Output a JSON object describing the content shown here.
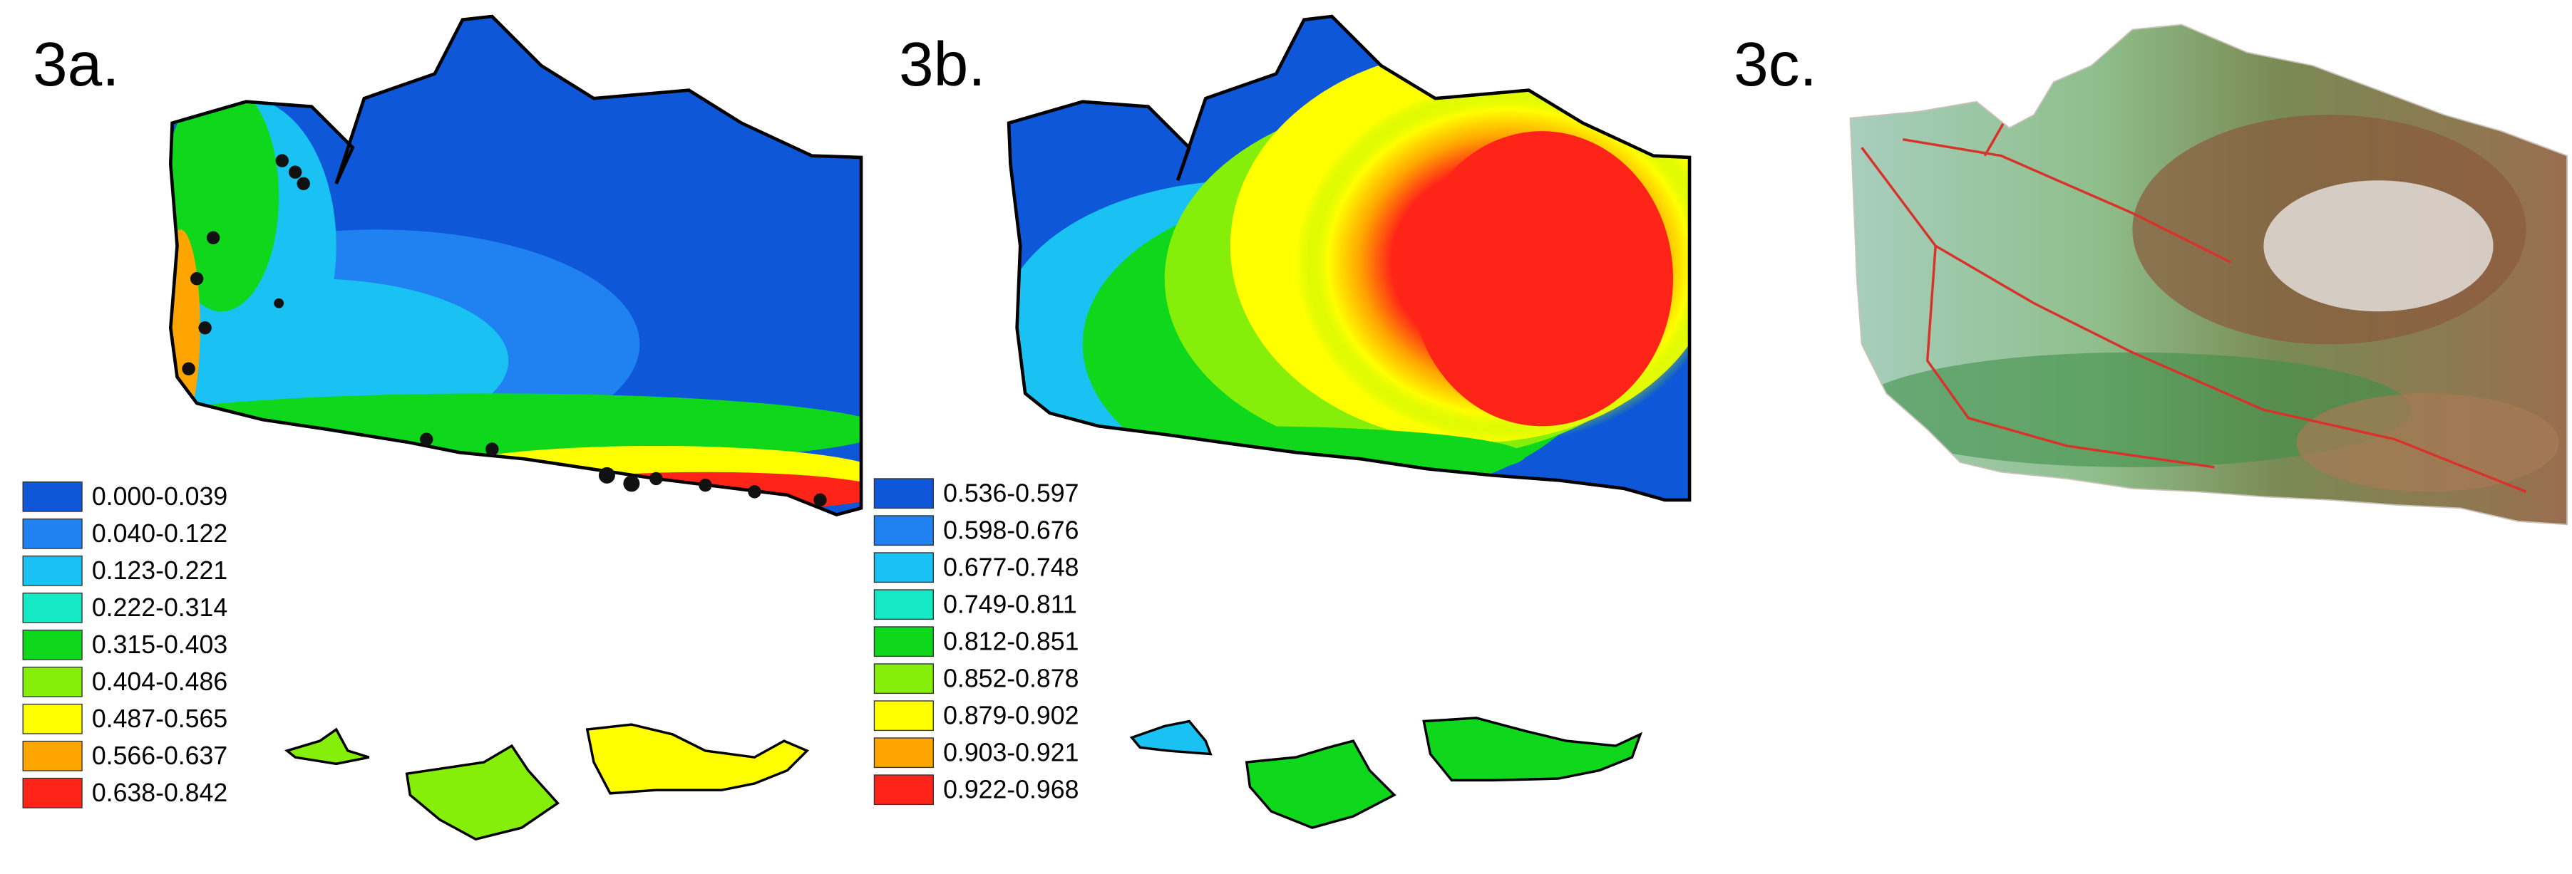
{
  "panels": [
    {
      "label": "3a.",
      "legend": [
        {
          "label": "0.000-0.039",
          "color": "#0d57d8"
        },
        {
          "label": "0.040-0.122",
          "color": "#1f82f0"
        },
        {
          "label": "0.123-0.221",
          "color": "#19c2f2"
        },
        {
          "label": "0.222-0.314",
          "color": "#14e8c4"
        },
        {
          "label": "0.315-0.403",
          "color": "#0fd81c"
        },
        {
          "label": "0.404-0.486",
          "color": "#86ef0a"
        },
        {
          "label": "0.487-0.565",
          "color": "#ffff00"
        },
        {
          "label": "0.566-0.637",
          "color": "#ffa500"
        },
        {
          "label": "0.638-0.842",
          "color": "#ff2418"
        }
      ]
    },
    {
      "label": "3b.",
      "legend": [
        {
          "label": "0.536-0.597",
          "color": "#0d57d8"
        },
        {
          "label": "0.598-0.676",
          "color": "#1f82f0"
        },
        {
          "label": "0.677-0.748",
          "color": "#19c2f2"
        },
        {
          "label": "0.749-0.811",
          "color": "#14e8c4"
        },
        {
          "label": "0.812-0.851",
          "color": "#0fd81c"
        },
        {
          "label": "0.852-0.878",
          "color": "#86ef0a"
        },
        {
          "label": "0.879-0.902",
          "color": "#ffff00"
        },
        {
          "label": "0.903-0.921",
          "color": "#ffa500"
        },
        {
          "label": "0.922-0.968",
          "color": "#ff2418"
        }
      ]
    },
    {
      "label": "3c."
    }
  ]
}
